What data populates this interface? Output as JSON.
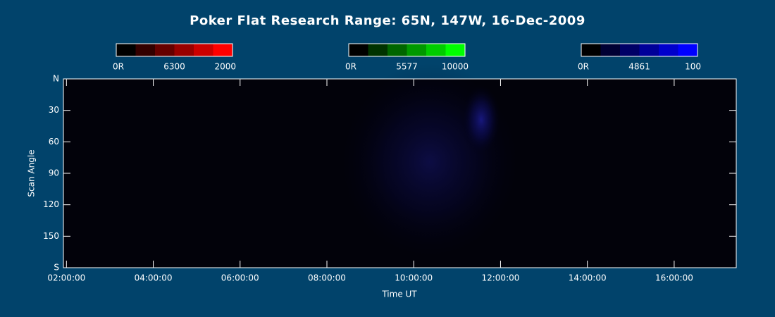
{
  "chart_data": {
    "type": "keogram",
    "title": "Poker Flat Research Range: 65N, 147W, 16-Dec-2009",
    "xlabel": "Time UT",
    "ylabel": "Scan Angle",
    "xlim": [
      1.93,
      17.43
    ],
    "xticks": [
      {
        "value": 2,
        "label": "02:00:00"
      },
      {
        "value": 4,
        "label": "04:00:00"
      },
      {
        "value": 6,
        "label": "06:00:00"
      },
      {
        "value": 8,
        "label": "08:00:00"
      },
      {
        "value": 10,
        "label": "10:00:00"
      },
      {
        "value": 12,
        "label": "12:00:00"
      },
      {
        "value": 14,
        "label": "14:00:00"
      },
      {
        "value": 16,
        "label": "16:00:00"
      }
    ],
    "ylim": [
      0,
      180
    ],
    "yticks": [
      {
        "value": 0,
        "label": "N"
      },
      30,
      60,
      90,
      120,
      150,
      {
        "value": 180,
        "label": "S"
      }
    ],
    "colorbars": [
      {
        "colors": [
          "#000000",
          "#330000",
          "#660000",
          "#990000",
          "#cc0000",
          "#ff0000"
        ],
        "labels": [
          "0R",
          "6300",
          "2000"
        ]
      },
      {
        "colors": [
          "#000000",
          "#003300",
          "#006600",
          "#009900",
          "#00cc00",
          "#00ff00"
        ],
        "labels": [
          "0R",
          "5577",
          "10000"
        ]
      },
      {
        "colors": [
          "#000000",
          "#000033",
          "#000066",
          "#000099",
          "#0000cc",
          "#0000ff"
        ],
        "labels": [
          "0R",
          "4861",
          "100"
        ]
      }
    ]
  }
}
